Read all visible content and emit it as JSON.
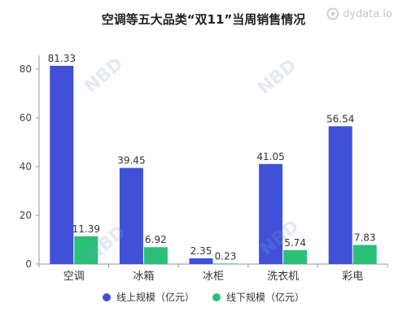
{
  "brand": {
    "text": "dydata.io",
    "icon": "dydata-logo-icon"
  },
  "watermark": {
    "text": "NBD"
  },
  "colors": {
    "series_online": "#4051d8",
    "series_offline": "#2bbf78",
    "axis": "#999999",
    "grid": "#e8e8e8"
  },
  "chart_data": {
    "type": "bar",
    "title": "空调等五大品类“双11”当周销售情况",
    "categories": [
      "空调",
      "冰箱",
      "冰柜",
      "洗衣机",
      "彩电"
    ],
    "series": [
      {
        "name": "线上规模（亿元）",
        "values": [
          81.33,
          39.45,
          2.35,
          41.05,
          56.54
        ]
      },
      {
        "name": "线下规模（亿元）",
        "values": [
          11.39,
          6.92,
          0.23,
          5.74,
          7.83
        ]
      }
    ],
    "y_ticks": [
      "0",
      "20",
      "40",
      "60",
      "80"
    ],
    "ylim": [
      0,
      90
    ],
    "grid": false,
    "legend_position": "bottom"
  }
}
